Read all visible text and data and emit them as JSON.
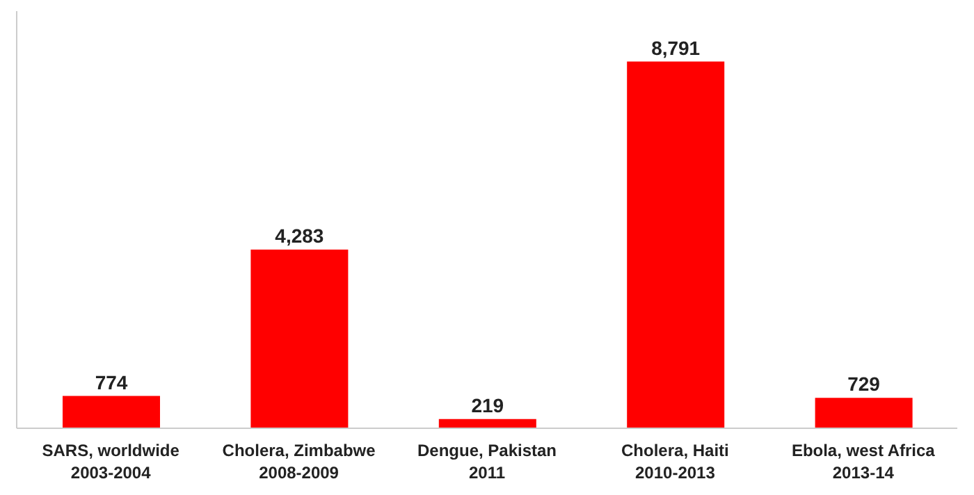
{
  "chart_data": {
    "type": "bar",
    "categories": [
      "SARS, worldwide\n2003-2004",
      "Cholera, Zimbabwe\n2008-2009",
      "Dengue, Pakistan\n2011",
      "Cholera, Haiti\n2010-2013",
      "Ebola, west Africa\n2013-14"
    ],
    "values": [
      774,
      4283,
      219,
      8791,
      729
    ],
    "color": "#ff0000",
    "value_labels": [
      "774",
      "4,283",
      "219",
      "8,791",
      "729"
    ],
    "ylim": [
      0,
      10000
    ],
    "tick_labels": "x"
  }
}
